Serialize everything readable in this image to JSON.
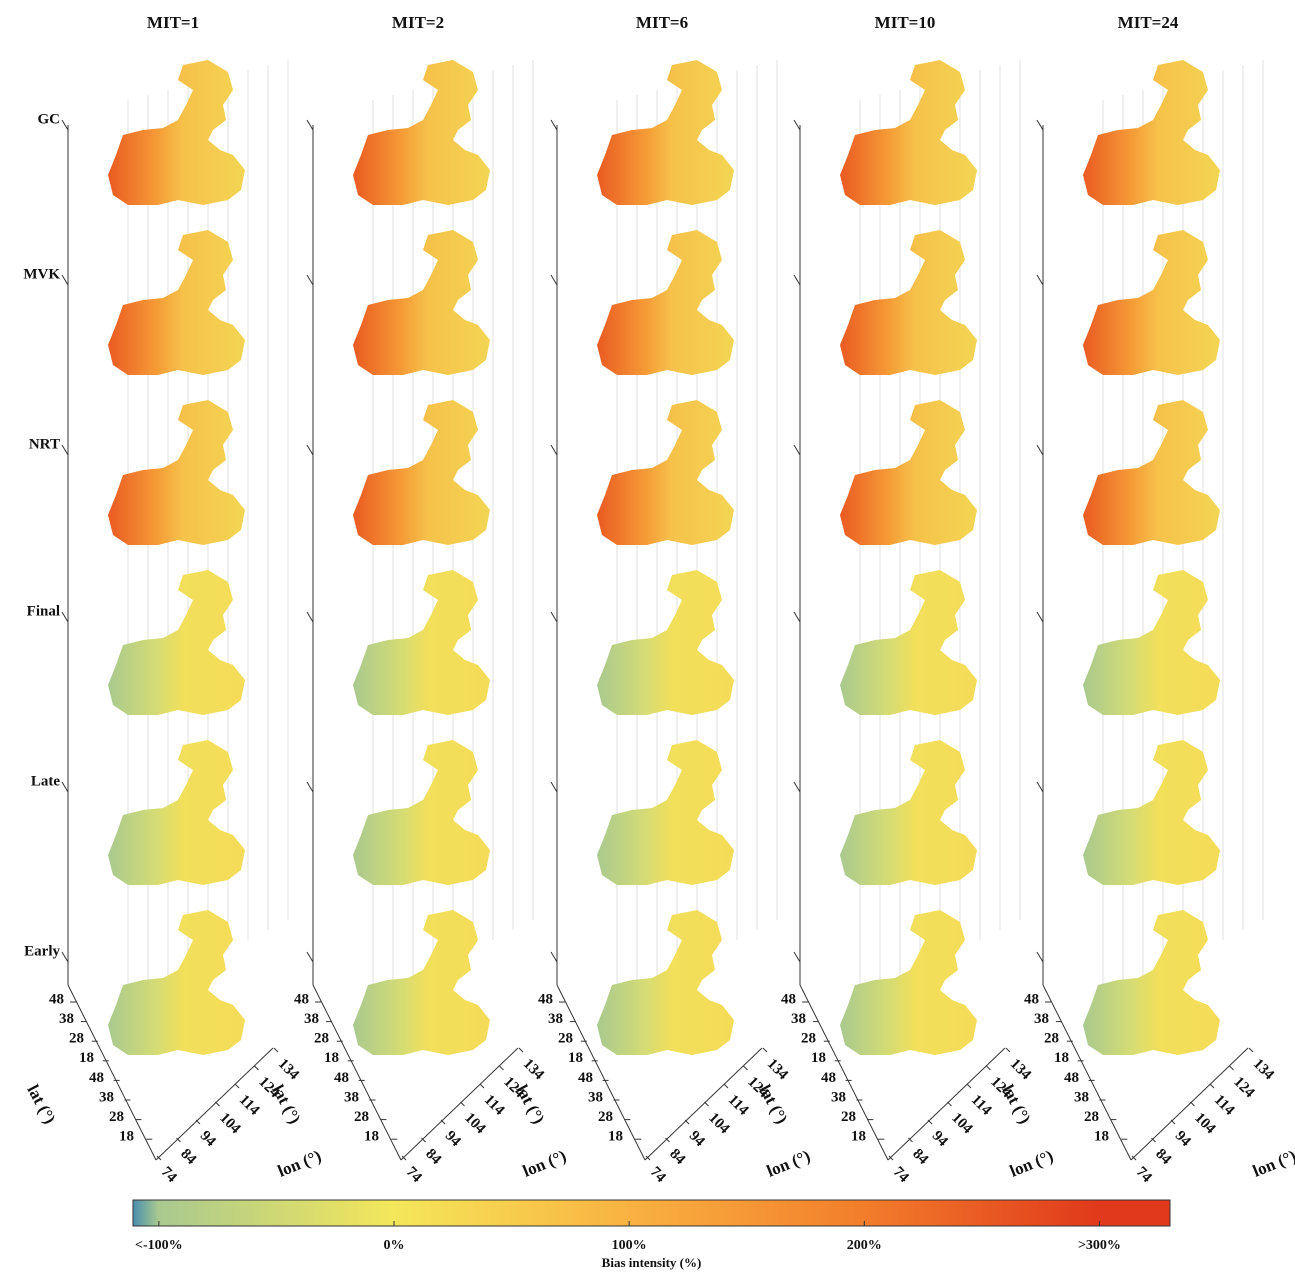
{
  "chart_data": {
    "type": "stacked-map",
    "columns": [
      "MIT=1",
      "MIT=2",
      "MIT=6",
      "MIT=10",
      "MIT=24"
    ],
    "rows": [
      "GC",
      "MVK",
      "NRT",
      "Final",
      "Late",
      "Early"
    ],
    "lat_label": "lat (°)",
    "lon_label": "lon (°)",
    "latticks": [
      48,
      38,
      28,
      18,
      48,
      38,
      28,
      18
    ],
    "lonticks": [
      74,
      84,
      94,
      104,
      114,
      124,
      134
    ],
    "colorbar": {
      "label": "Bias intensity (%)",
      "clim": [
        -111,
        330
      ],
      "ticks": [
        {
          "value": -100,
          "label": "<-100%"
        },
        {
          "value": 0,
          "label": "0%"
        },
        {
          "value": 100,
          "label": "100%"
        },
        {
          "value": 200,
          "label": "200%"
        },
        {
          "value": 300,
          "label": ">300%"
        }
      ],
      "colors": [
        "#4a8fae",
        "#a9c98f",
        "#f4e75a",
        "#f9b241",
        "#f27d2b",
        "#e0391b"
      ]
    }
  }
}
